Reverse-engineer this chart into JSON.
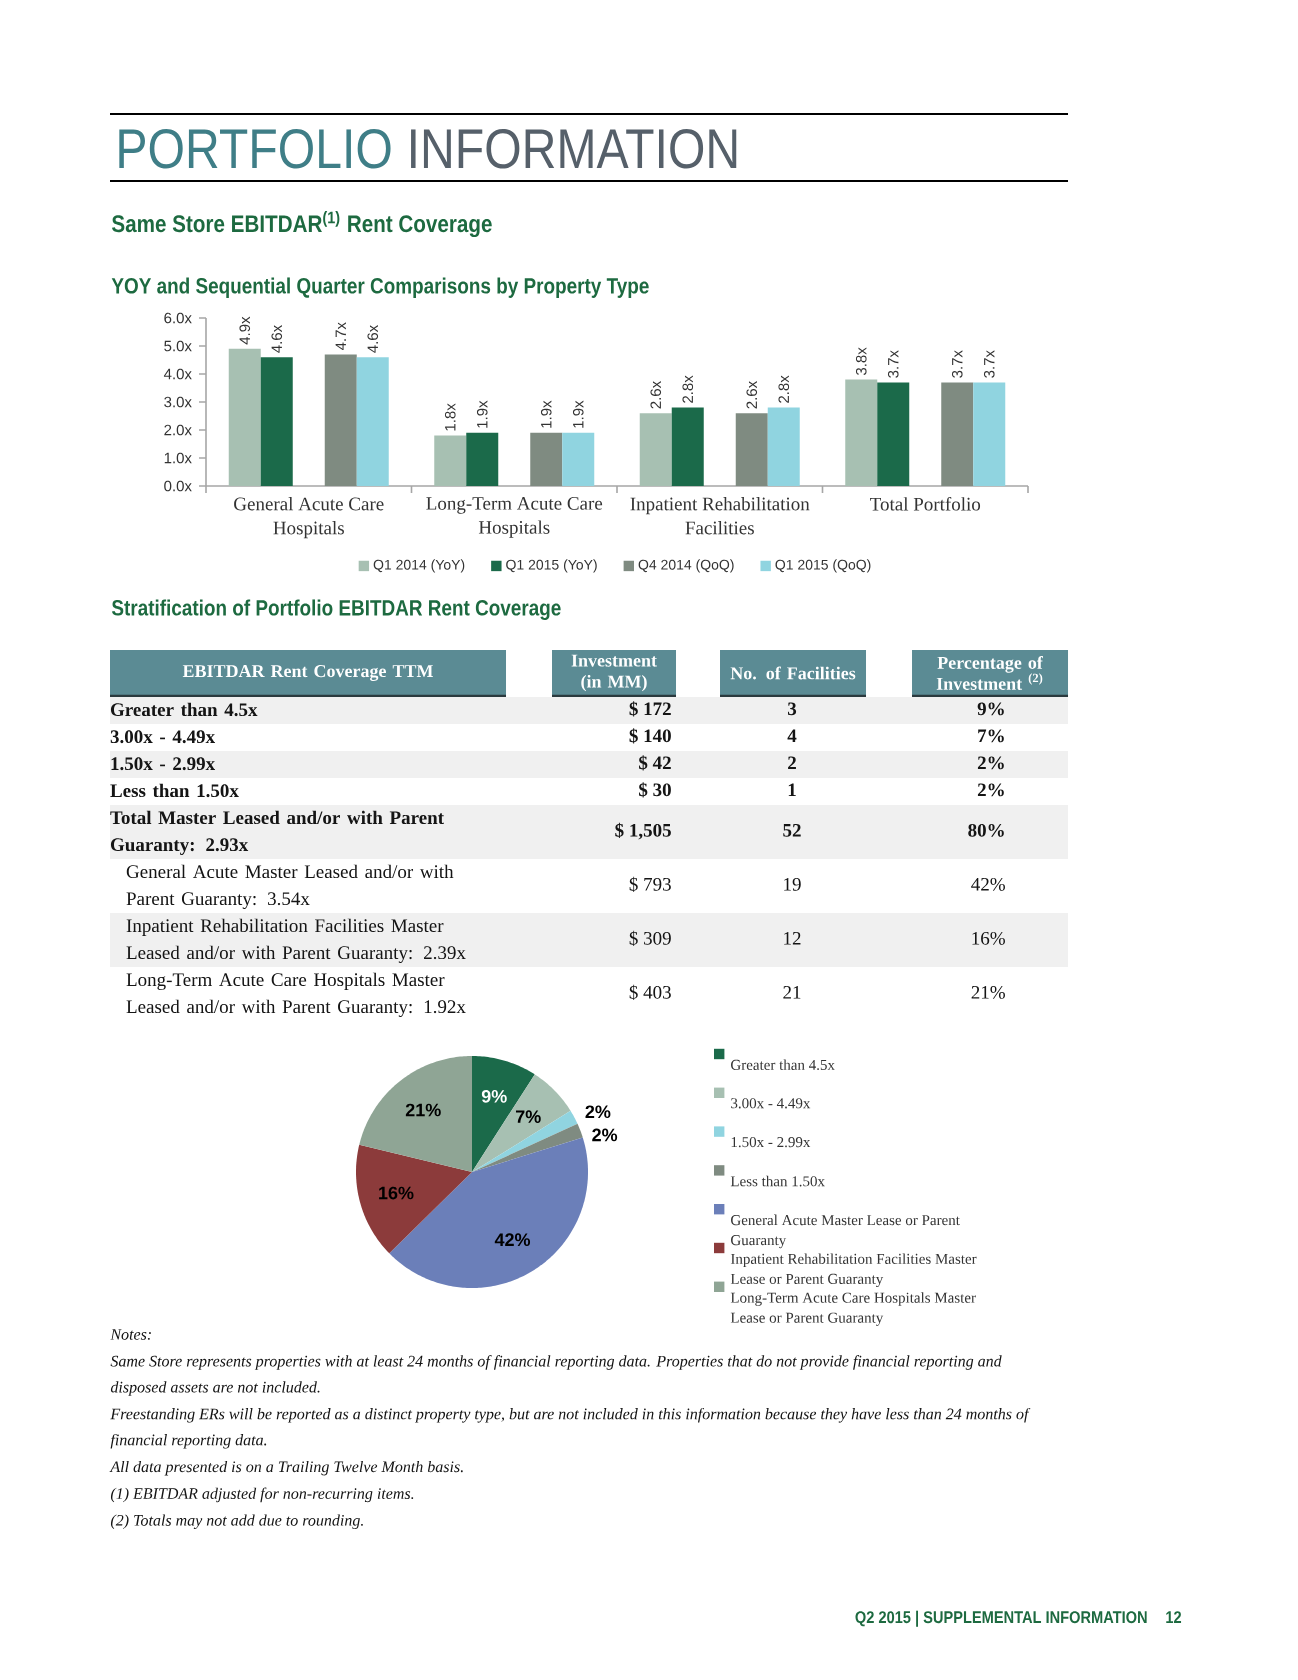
{
  "chart_data": [
    {
      "type": "bar",
      "title": "Same Store EBITDAR$^{(1)}$ Rent Coverage",
      "subtitle": "YOY and Sequential Quarter Comparisons by Property Type",
      "annotations": [
        "PORTFOLIO",
        "INFORMATION"
      ],
      "categories": [
        "General Acute Care Hospitals",
        "Long-Term Acute Care Hospitals",
        "Inpatient Rehabilitation Facilities",
        "Total Portfolio"
      ],
      "series": [
        {
          "name": "Q1 2014 (YoY)",
          "color": "#a7c0b2",
          "values": [
            4.9,
            1.8,
            2.6,
            3.8
          ],
          "value_labels": [
            "4.9x",
            "1.8x",
            "2.6x",
            "3.8x"
          ]
        },
        {
          "name": "Q1 2015 (YoY)",
          "color": "#1b6a4a",
          "values": [
            4.6,
            1.9,
            2.8,
            3.7
          ],
          "value_labels": [
            "4.6x",
            "1.9x",
            "2.8x",
            "3.7x"
          ]
        },
        {
          "name": "Q4 2014 (QoQ)",
          "color": "#7f8b81",
          "values": [
            4.7,
            1.9,
            2.6,
            3.7
          ],
          "value_labels": [
            "4.7x",
            "1.9x",
            "2.6x",
            "3.7x"
          ]
        },
        {
          "name": "Q1 2015 (QoQ)",
          "color": "#90d4e0",
          "values": [
            4.6,
            1.9,
            2.8,
            3.7
          ],
          "value_labels": [
            "4.6x",
            "1.9x",
            "2.8x",
            "3.7x"
          ]
        }
      ],
      "ylim": [
        0,
        6
      ],
      "yticks": [
        {
          "value": 0,
          "label": "0.0x"
        },
        {
          "value": 1,
          "label": "1.0x"
        },
        {
          "value": 2,
          "label": "2.0x"
        },
        {
          "value": 3,
          "label": "3.0x"
        },
        {
          "value": 4,
          "label": "4.0x"
        },
        {
          "value": 5,
          "label": "5.0x"
        },
        {
          "value": 6,
          "label": "6.0x"
        }
      ],
      "legend": "bottom"
    },
    {
      "type": "other",
      "title": "Stratification of Portfolio EBITDAR Rent Coverage",
      "ylabel": "EBITDAR Rent Coverage TTM",
      "categories": [
        "Greater than 4.5x",
        "3.00x - 4.49x",
        "1.50x - 2.99x",
        "Less than 1.50x",
        "Total Master Leased and/or with Parent Guaranty: 2.93x",
        "General Acute Master Leased and/or with Parent Guaranty: 3.54x",
        "Inpatient Rehabilitation Facilities Master Leased and/or with Parent Guaranty: 2.39x",
        "Long-Term Acute Care Hospitals Master Leased and/or with Parent Guaranty: 1.92x"
      ],
      "series": [
        {
          "name": "Investment (in MM)",
          "values": [
            172,
            140,
            42,
            30,
            1505,
            793,
            309,
            403
          ],
          "value_labels": [
            "$ 172",
            "$ 140",
            "$ 42",
            "$ 30",
            "$ 1,505",
            "$ 793",
            "$ 309",
            "$ 403"
          ]
        },
        {
          "name": "No. of Facilities",
          "values": [
            3,
            4,
            2,
            1,
            52,
            19,
            12,
            21
          ]
        },
        {
          "name": "Percentage of Investment $^{(2)}$",
          "values": [
            9,
            7,
            2,
            2,
            80,
            42,
            16,
            21
          ],
          "value_labels": [
            "9%",
            "7%",
            "2%",
            "2%",
            "80%",
            "42%",
            "16%",
            "21%"
          ]
        }
      ],
      "data_labels": true
    },
    {
      "type": "pie",
      "categories": [
        "Greater than 4.5x",
        "3.00x - 4.49x",
        "1.50x - 2.99x",
        "Less than 1.50x",
        "General Acute Master Lease or Parent Guaranty",
        "Inpatient Rehabilitation Facilities Master Lease or Parent Guaranty",
        "Long-Term Acute Care Hospitals Master Lease or Parent Guaranty"
      ],
      "values": [
        9,
        7,
        2,
        2,
        42,
        16,
        21
      ],
      "value_labels": [
        "9%",
        "7%",
        "2%",
        "2%",
        "42%",
        "16%",
        "21%"
      ],
      "colors": [
        "#1b6a4a",
        "#a7c0b2",
        "#90d4e0",
        "#7f8b81",
        "#6b7fb9",
        "#8c3b3b",
        "#8fa595"
      ],
      "legend": "right",
      "annotations": [
        "Notes:",
        "Same Store represents properties with at least 24 months of financial reporting data. Properties that do not provide financial reporting and disposed assets are not included.",
        "Freestanding ERs will be reported as a distinct property type, but are not included in this information because they have less than 24 months of financial reporting data.",
        "All data presented is on a Trailing Twelve Month basis.",
        "(1) EBITDAR adjusted for non-recurring items.",
        "(2) Totals may not add due to rounding.",
        "Q2 2015 | SUPPLEMENTAL INFORMATION",
        "12"
      ]
    }
  ]
}
